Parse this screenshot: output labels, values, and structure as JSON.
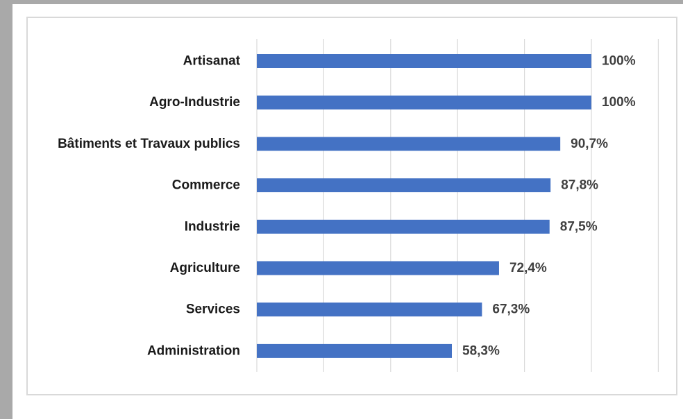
{
  "chart_data": {
    "type": "bar",
    "orientation": "horizontal",
    "categories": [
      "Artisanat",
      "Agro-Industrie",
      "Bâtiments et Travaux publics",
      "Commerce",
      "Industrie",
      "Agriculture",
      "Services",
      "Administration"
    ],
    "values": [
      100,
      100,
      90.7,
      87.8,
      87.5,
      72.4,
      67.3,
      58.3
    ],
    "value_labels": [
      "100%",
      "100%",
      "90,7%",
      "87,8%",
      "87,5%",
      "72,4%",
      "67,3%",
      "58,3%"
    ],
    "unit": "%",
    "xlim": [
      0,
      120
    ],
    "grid": true,
    "legend": "none",
    "colors": {
      "bar": "#4472c4",
      "grid": "#d9d9d9",
      "frame": "#a9a9a9"
    }
  }
}
